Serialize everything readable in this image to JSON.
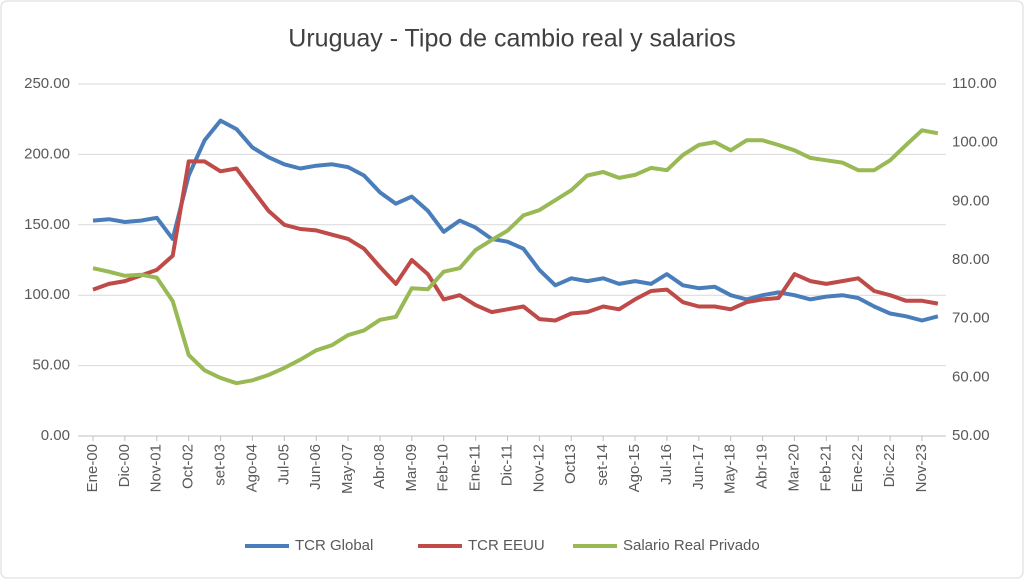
{
  "chart_data": {
    "type": "line",
    "title": "Uruguay - Tipo de cambio real y salarios",
    "categories": [
      "Ene-00",
      null,
      "Dic-00",
      null,
      "Nov-01",
      null,
      "Oct-02",
      null,
      "set-03",
      null,
      "Ago-04",
      null,
      "Jul-05",
      null,
      "Jun-06",
      null,
      "May-07",
      null,
      "Abr-08",
      null,
      "Mar-09",
      null,
      "Feb-10",
      null,
      "Ene-11",
      null,
      "Dic-11",
      null,
      "Nov-12",
      null,
      "Oct13",
      null,
      "set-14",
      null,
      "Ago-15",
      null,
      "Jul-16",
      null,
      "Jun-17",
      null,
      "May-18",
      null,
      "Abr-19",
      null,
      "Mar-20",
      null,
      "Feb-21",
      null,
      "Ene-22",
      null,
      "Dic-22",
      null,
      "Nov-23",
      null
    ],
    "series": [
      {
        "name": "TCR Global",
        "color": "#4a7ebb",
        "values": [
          153,
          154,
          152,
          153,
          155,
          140,
          185,
          210,
          224,
          218,
          205,
          198,
          193,
          190,
          192,
          193,
          191,
          185,
          173,
          165,
          170,
          160,
          145,
          153,
          148,
          140,
          138,
          133,
          118,
          107,
          112,
          110,
          112,
          108,
          110,
          108,
          115,
          107,
          105,
          106,
          100,
          97,
          100,
          102,
          100,
          97,
          99,
          100,
          98,
          92,
          87,
          85,
          82,
          85
        ]
      },
      {
        "name": "TCR EEUU",
        "color": "#be4b48",
        "values": [
          104,
          108,
          110,
          114,
          118,
          128,
          195,
          195,
          188,
          190,
          175,
          160,
          150,
          147,
          146,
          143,
          140,
          133,
          120,
          108,
          125,
          115,
          97,
          100,
          93,
          88,
          90,
          92,
          83,
          82,
          87,
          88,
          92,
          90,
          97,
          103,
          104,
          95,
          92,
          92,
          90,
          95,
          97,
          98,
          115,
          110,
          108,
          110,
          112,
          103,
          100,
          96,
          96,
          94
        ]
      },
      {
        "name": "Salario Real Privado",
        "color": "#98b954",
        "axis": "y2",
        "values": [
          78.6,
          78,
          77.3,
          77.5,
          77,
          73,
          63.8,
          61.2,
          59.9,
          59,
          59.5,
          60.4,
          61.6,
          63,
          64.6,
          65.5,
          67.2,
          68,
          69.8,
          70.3,
          75.2,
          75,
          78,
          78.6,
          81.7,
          83.4,
          85,
          87.6,
          88.5,
          90.2,
          91.9,
          94.4,
          95,
          94,
          94.5,
          95.7,
          95.3,
          97.9,
          99.6,
          100.1,
          98.7,
          100.4,
          100.4,
          99.6,
          98.7,
          97.4,
          97,
          96.6,
          95.3,
          95.3,
          97,
          99.6,
          102.1,
          101.6
        ]
      }
    ],
    "ylim": [
      0,
      250
    ],
    "yticks": [
      {
        "value": 0,
        "label": "0.00"
      },
      {
        "value": 50,
        "label": "50.00"
      },
      {
        "value": 100,
        "label": "100.00"
      },
      {
        "value": 150,
        "label": "150.00"
      },
      {
        "value": 200,
        "label": "200.00"
      },
      {
        "value": 250,
        "label": "250.00"
      }
    ],
    "y2lim": [
      50,
      110
    ],
    "y2ticks": [
      {
        "value": 50,
        "label": "50.00"
      },
      {
        "value": 60,
        "label": "60.00"
      },
      {
        "value": 70,
        "label": "70.00"
      },
      {
        "value": 80,
        "label": "80.00"
      },
      {
        "value": 90,
        "label": "90.00"
      },
      {
        "value": 100,
        "label": "100.00"
      },
      {
        "value": 110,
        "label": "110.00"
      }
    ],
    "grid": true,
    "legend": "bottom"
  }
}
